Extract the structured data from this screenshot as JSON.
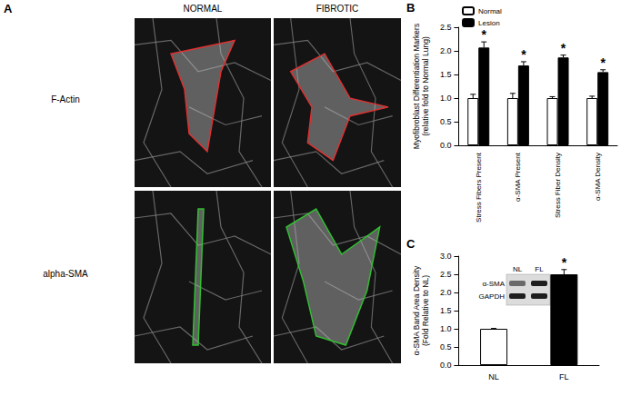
{
  "panel_a": {
    "panel": "A",
    "columns": [
      "NORMAL",
      "FIBROTIC"
    ],
    "rows": [
      "F-Actin",
      "alpha-SMA"
    ]
  },
  "chart_data": [
    {
      "type": "bar",
      "panel": "B",
      "y_label": "Myofibroblast Differentiation Markers\n(relative fold to Normal Lung)",
      "categories": [
        "Stress Fibers Present",
        "α-SMA Present",
        "Stress Fiber Density",
        "α-SMA Density"
      ],
      "series": [
        {
          "name": "Normal",
          "color": "#ffffff",
          "values": [
            1.0,
            1.0,
            1.0,
            1.0
          ],
          "errors": [
            0.08,
            0.1,
            0.03,
            0.04
          ],
          "marks": [
            null,
            null,
            null,
            null
          ]
        },
        {
          "name": "Lesion",
          "color": "#000000",
          "values": [
            2.07,
            1.69,
            1.86,
            1.55
          ],
          "errors": [
            0.12,
            0.08,
            0.05,
            0.05
          ],
          "marks": [
            "*",
            "*",
            "*",
            "*"
          ]
        }
      ],
      "ylim": [
        0,
        2.5
      ],
      "yticks": [
        {
          "value": 0,
          "label": "0.0"
        },
        0.5,
        {
          "value": 1,
          "label": "1.0"
        },
        1.5,
        {
          "value": 2,
          "label": "2.0"
        },
        2.5
      ],
      "legend": "top-left",
      "grid": false
    },
    {
      "type": "bar",
      "panel": "C",
      "y_label": "α-SMA Band Area Density\n(Fold Relative to NL)",
      "categories": [
        "NL",
        "FL"
      ],
      "values": [
        1.0,
        2.5
      ],
      "errors": [
        0.01,
        0.13
      ],
      "marks": [
        null,
        "*"
      ],
      "colors": [
        "#ffffff",
        "#000000"
      ],
      "ylim": [
        0,
        3
      ],
      "yticks": [
        {
          "value": 0,
          "label": "0.0"
        },
        0.5,
        {
          "value": 1,
          "label": "1.0"
        },
        1.5,
        {
          "value": 2,
          "label": "2.0"
        },
        2.5,
        {
          "value": 3,
          "label": "3.0"
        }
      ],
      "grid": false,
      "inset": {
        "lanes": [
          "NL",
          "FL"
        ],
        "bands": [
          "α-SMA",
          "GAPDH"
        ]
      }
    }
  ]
}
